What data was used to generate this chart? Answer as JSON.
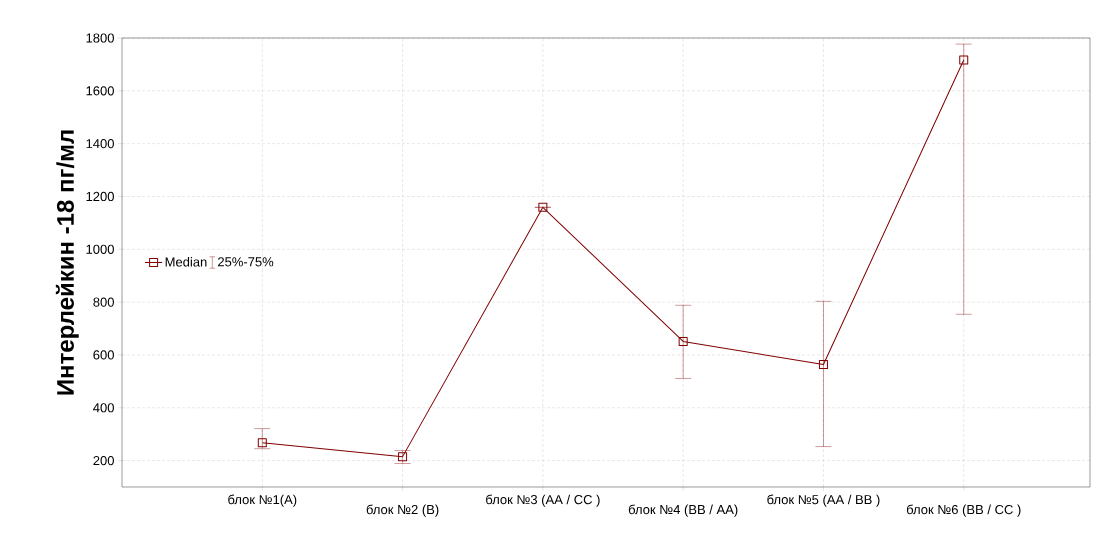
{
  "chart_data": {
    "type": "line",
    "ylabel": "Интерлейкин -18 пг/мл",
    "categories": [
      "блок №1(A)",
      "блок №2 (B)",
      "блок №3 (AA / CC )",
      "блок №4 (BB / AA)",
      "блок №5 (AA / BB )",
      "блок №6 (BB / CC )"
    ],
    "series": [
      {
        "name": "Median",
        "color": "#800000",
        "values": [
          268,
          215,
          1159,
          651,
          564,
          1717
        ],
        "errors": [
          [
            245,
            321
          ],
          [
            189,
            238
          ],
          null,
          [
            511,
            788
          ],
          [
            253,
            803
          ],
          [
            754,
            1777
          ]
        ]
      }
    ],
    "annotations": [
      "25%-75%"
    ],
    "ylim": [
      100,
      1800
    ],
    "yticks": [
      200,
      400,
      600,
      800,
      1000,
      1200,
      1400,
      1600,
      1800
    ],
    "grid": true,
    "legend": "left",
    "marker": "square",
    "line_style": "solid"
  }
}
